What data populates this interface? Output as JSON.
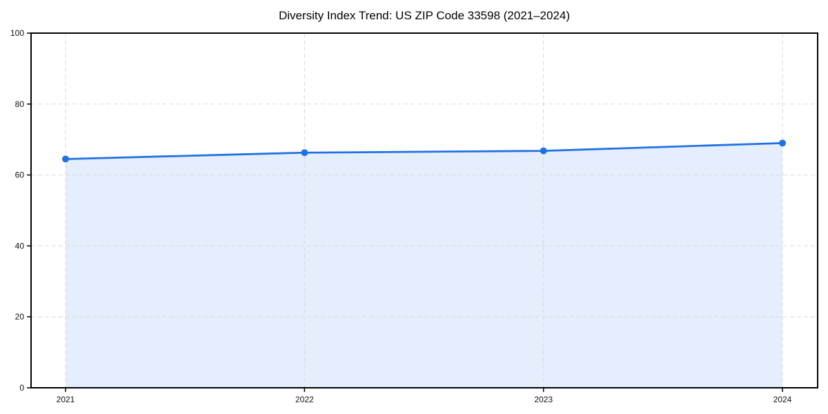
{
  "chart_data": {
    "type": "area",
    "title": "Diversity Index Trend: US ZIP Code 33598 (2021–2024)",
    "x": [
      "2021",
      "2022",
      "2023",
      "2024"
    ],
    "series": [
      {
        "name": "Diversity Index",
        "values": [
          64.5,
          66.3,
          66.8,
          69.0
        ]
      }
    ],
    "xlabel": "",
    "ylabel": "",
    "ylim": [
      0,
      100
    ],
    "yticks": [
      0,
      20,
      40,
      60,
      80,
      100
    ],
    "grid": true,
    "grid_style": "dashed",
    "legend": "none",
    "marker": "circle",
    "colors": {
      "line": "#2171e5",
      "marker": "#2171e5",
      "fill": "rgba(33, 113, 229, 0.12)",
      "grid": "#d9d9d9",
      "spine": "#000000",
      "tick_label": "#111111",
      "title": "#000000",
      "background": "#ffffff"
    }
  }
}
